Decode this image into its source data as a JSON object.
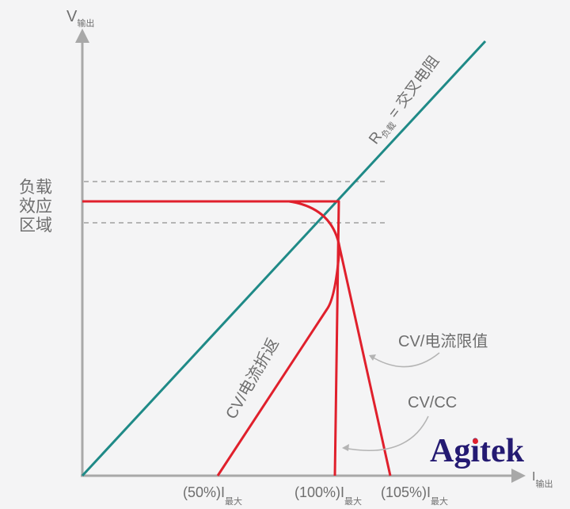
{
  "axes": {
    "y_label": "V",
    "y_label_sub": "输出",
    "x_label": "I",
    "x_label_sub": "输出"
  },
  "region_label": [
    "负载",
    "效应",
    "区域"
  ],
  "load_line": {
    "label": "R",
    "label_sub": "负载",
    "label_rest": " = 交叉电阻",
    "color": "#1f8a87"
  },
  "curve_color": "#e0202c",
  "curves": {
    "foldback": "CV/电流折返",
    "current_limit": "CV/电流限值",
    "cvcc": "CV/CC"
  },
  "ticks": [
    {
      "label": "(50%)I",
      "sub": "最大"
    },
    {
      "label": "(100%)I",
      "sub": "最大"
    },
    {
      "label": "(105%)I",
      "sub": "最大"
    }
  ],
  "logo": {
    "text": "Agitek",
    "color": "#241a72",
    "dot_color": "#e0202c"
  }
}
